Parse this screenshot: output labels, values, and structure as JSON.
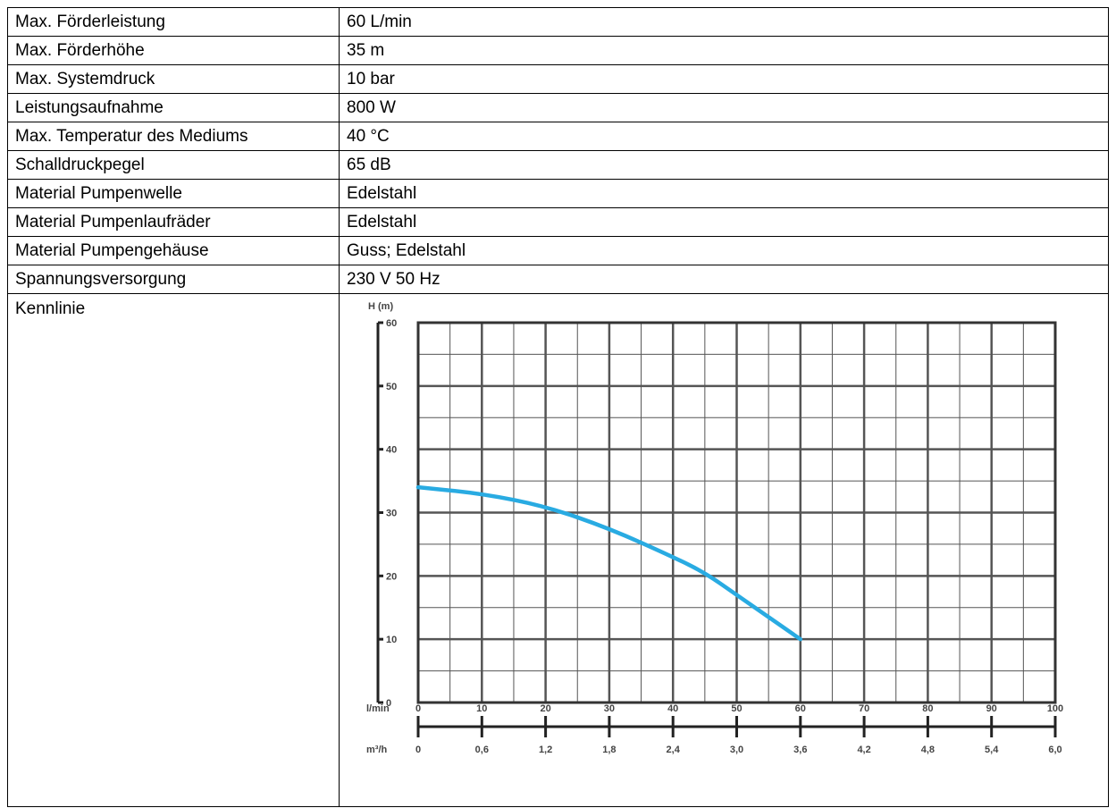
{
  "rows": [
    {
      "label": "Max. Förderleistung",
      "value": "60 L/min"
    },
    {
      "label": "Max. Förderhöhe",
      "value": "35 m"
    },
    {
      "label": "Max. Systemdruck",
      "value": "10 bar"
    },
    {
      "label": "Leistungsaufnahme",
      "value": "800 W"
    },
    {
      "label": "Max. Temperatur des Mediums",
      "value": "40 °C"
    },
    {
      "label": "Schalldruckpegel",
      "value": "65 dB"
    },
    {
      "label": "Material Pumpenwelle",
      "value": "Edelstahl"
    },
    {
      "label": "Material Pumpenlaufräder",
      "value": "Edelstahl"
    },
    {
      "label": "Material Pumpengehäuse",
      "value": "Guss; Edelstahl"
    },
    {
      "label": "Spannungsversorgung",
      "value": "230 V 50 Hz"
    }
  ],
  "chart_label": "Kennlinie",
  "chart_data": {
    "type": "line",
    "ylabel": "H (m)",
    "xlabel": "l/min",
    "x2label": "m³/h",
    "ylim": [
      0,
      60
    ],
    "xlim": [
      0,
      100
    ],
    "y_ticks": [
      "0",
      "10",
      "20",
      "30",
      "40",
      "50",
      "60"
    ],
    "x_ticks": [
      "0",
      "10",
      "20",
      "30",
      "40",
      "50",
      "60",
      "70",
      "80",
      "90",
      "100"
    ],
    "x2_ticks": [
      "0",
      "0,6",
      "1,2",
      "1,8",
      "2,4",
      "3,0",
      "3,6",
      "4,2",
      "4,8",
      "5,4",
      "6,0"
    ],
    "grid": true,
    "line_color": "#29abe2",
    "series": [
      {
        "x": [
          0,
          10,
          20,
          30,
          40,
          45,
          50,
          55,
          60
        ],
        "y": [
          34,
          33,
          31,
          27.5,
          23,
          20.5,
          17,
          13.5,
          10
        ]
      }
    ]
  }
}
